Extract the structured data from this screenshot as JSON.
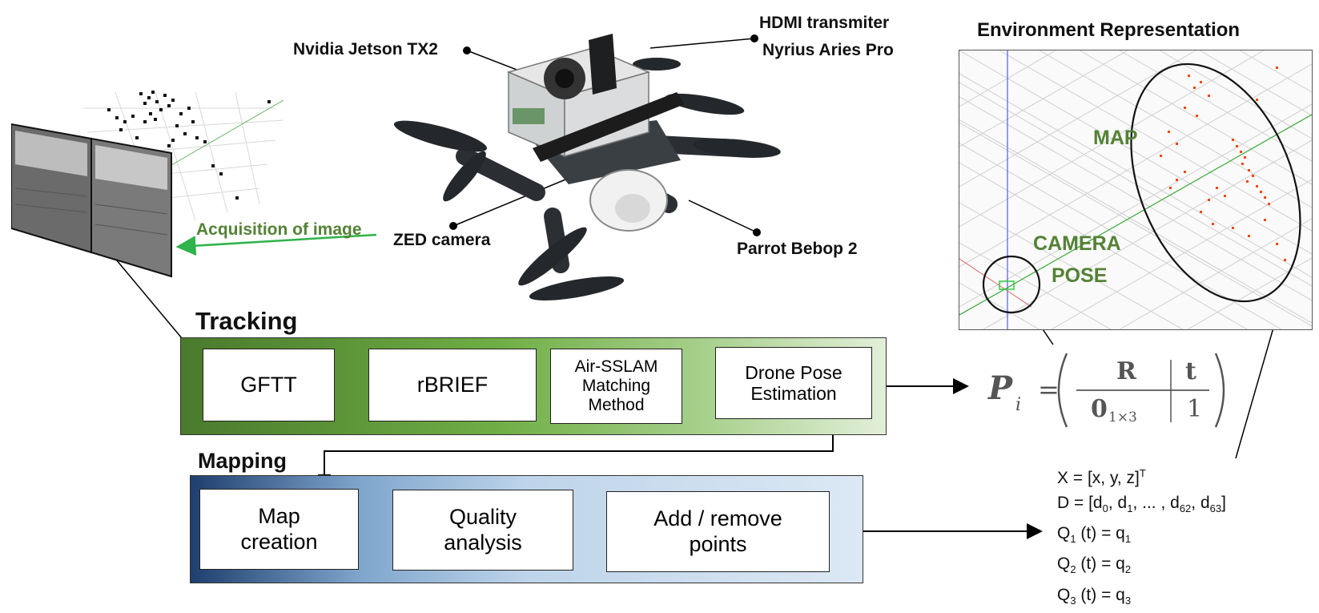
{
  "drone_labels": {
    "jetson": "Nvidia Jetson TX2",
    "hdmi_line1": "HDMI transmiter",
    "hdmi_line2": "Nyrius Aries Pro",
    "zed": "ZED camera",
    "parrot": "Parrot Bebop 2"
  },
  "acquisition_label": "Acquisition of image",
  "environment": {
    "title": "Environment Representation",
    "map_label": "MAP",
    "camera_label": "CAMERA",
    "pose_label": "POSE"
  },
  "tracking": {
    "title": "Tracking",
    "gftt": "GFTT",
    "rbrief": "rBRIEF",
    "matching_l1": "Air-SSLAM",
    "matching_l2": "Matching",
    "matching_l3": "Method",
    "pose_l1": "Drone Pose",
    "pose_l2": "Estimation"
  },
  "mapping": {
    "title": "Mapping",
    "map_creation_l1": "Map",
    "map_creation_l2": "creation",
    "quality_l1": "Quality",
    "quality_l2": "analysis",
    "add_remove_l1": "Add / remove",
    "add_remove_l2": "points"
  },
  "equation": {
    "lhs": "P",
    "lhs_sub": "i",
    "R": "R",
    "t": "t",
    "zero": "0",
    "zero_sub": "1×3",
    "one": "1"
  },
  "variables": {
    "x_def": "X = [x, y, z]",
    "x_sup": "T",
    "d_prefix": "D = [d",
    "d_0": "0",
    "d_mid": ", d",
    "d_1": "1",
    "d_dots": ", ... , d",
    "d_62": "62",
    "d_63": "63",
    "q1_a": "Q",
    "q1_s": "1",
    "q1_b": " (t) = q",
    "q1_s2": "1",
    "q2_a": "Q",
    "q2_s": "2",
    "q2_b": " (t) = q",
    "q2_s2": "2",
    "q3_a": "Q",
    "q3_s": "3",
    "q3_b": " (t) = q",
    "q3_s2": "3"
  },
  "colors": {
    "accent_green": "#548235",
    "arrow_green": "#2fb34a",
    "map_points": "#ff4400",
    "tracking_dark": "#4a7a2c",
    "mapping_dark": "#1f3f6e"
  }
}
